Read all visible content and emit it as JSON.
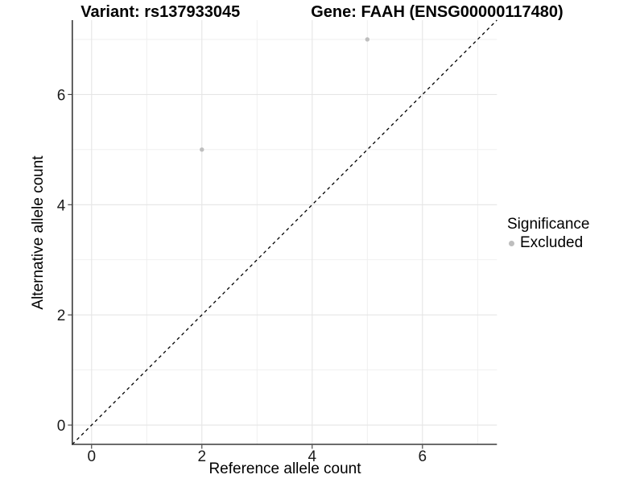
{
  "title": {
    "variant": "Variant: rs137933045",
    "gene": "Gene: FAAH (ENSG00000117480)"
  },
  "legend": {
    "title": "Significance",
    "items": [
      {
        "label": "Excluded",
        "color": "#bebebe"
      }
    ]
  },
  "colors": {
    "point": "#bebebe",
    "grid_major": "#e5e5e5",
    "grid_minor": "#eeeeee",
    "axis_line": "#3a3a3a",
    "tick_text": "#1a1a1a",
    "identity_line": "#000000",
    "background": "#ffffff"
  },
  "chart_data": {
    "type": "scatter",
    "title": "Variant: rs137933045 — Gene: FAAH (ENSG00000117480)",
    "xlabel": "Reference allele count",
    "ylabel": "Alternative allele count",
    "xlim": [
      -0.35,
      7.35
    ],
    "ylim": [
      -0.35,
      7.35
    ],
    "x_ticks": [
      0,
      2,
      4,
      6
    ],
    "y_ticks": [
      0,
      2,
      4,
      6
    ],
    "x_minor_ticks": [
      1,
      3,
      5,
      7
    ],
    "y_minor_ticks": [
      1,
      3,
      5,
      7
    ],
    "grid": true,
    "legend_position": "right",
    "series": [
      {
        "name": "Excluded",
        "color": "#bebebe",
        "points": [
          {
            "x": 2,
            "y": 5
          },
          {
            "x": 5,
            "y": 7
          }
        ]
      }
    ],
    "reference_line": {
      "kind": "identity",
      "equation": "y = x",
      "style": "dashed",
      "color": "#000000"
    }
  }
}
